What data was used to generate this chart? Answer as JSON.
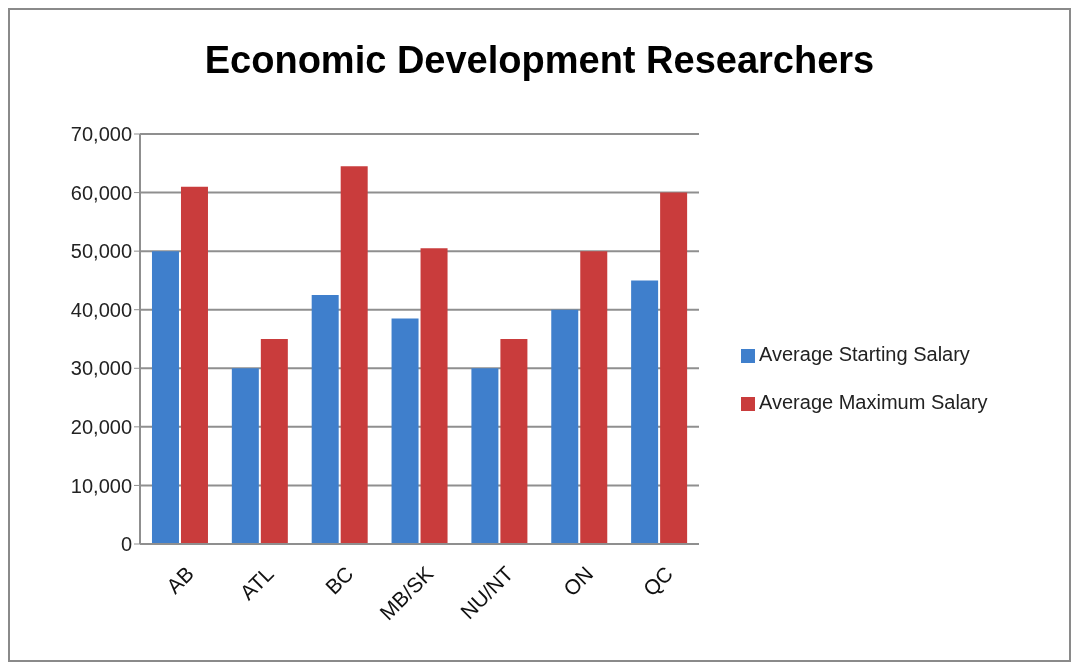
{
  "chart_data": {
    "type": "bar",
    "title": "Economic Development Researchers",
    "categories": [
      "AB",
      "ATL",
      "BC",
      "MB/SK",
      "NU/NT",
      "ON",
      "QC"
    ],
    "series": [
      {
        "name": "Average Starting Salary",
        "color": "#3f7fcc",
        "values": [
          50000,
          30000,
          42500,
          38500,
          30000,
          40000,
          45000
        ]
      },
      {
        "name": "Average Maximum Salary",
        "color": "#c93c3c",
        "values": [
          61000,
          35000,
          64500,
          50500,
          35000,
          50000,
          60000
        ]
      }
    ],
    "ylim": [
      0,
      70000
    ],
    "yticks": [
      {
        "value": 0,
        "label": "0"
      },
      {
        "value": 10000,
        "label": "10,000"
      },
      {
        "value": 20000,
        "label": "20,000"
      },
      {
        "value": 30000,
        "label": "30,000"
      },
      {
        "value": 40000,
        "label": "40,000"
      },
      {
        "value": 50000,
        "label": "50,000"
      },
      {
        "value": 60000,
        "label": "60,000"
      },
      {
        "value": 70000,
        "label": "70,000"
      }
    ],
    "grid": "y",
    "legend": "right"
  }
}
